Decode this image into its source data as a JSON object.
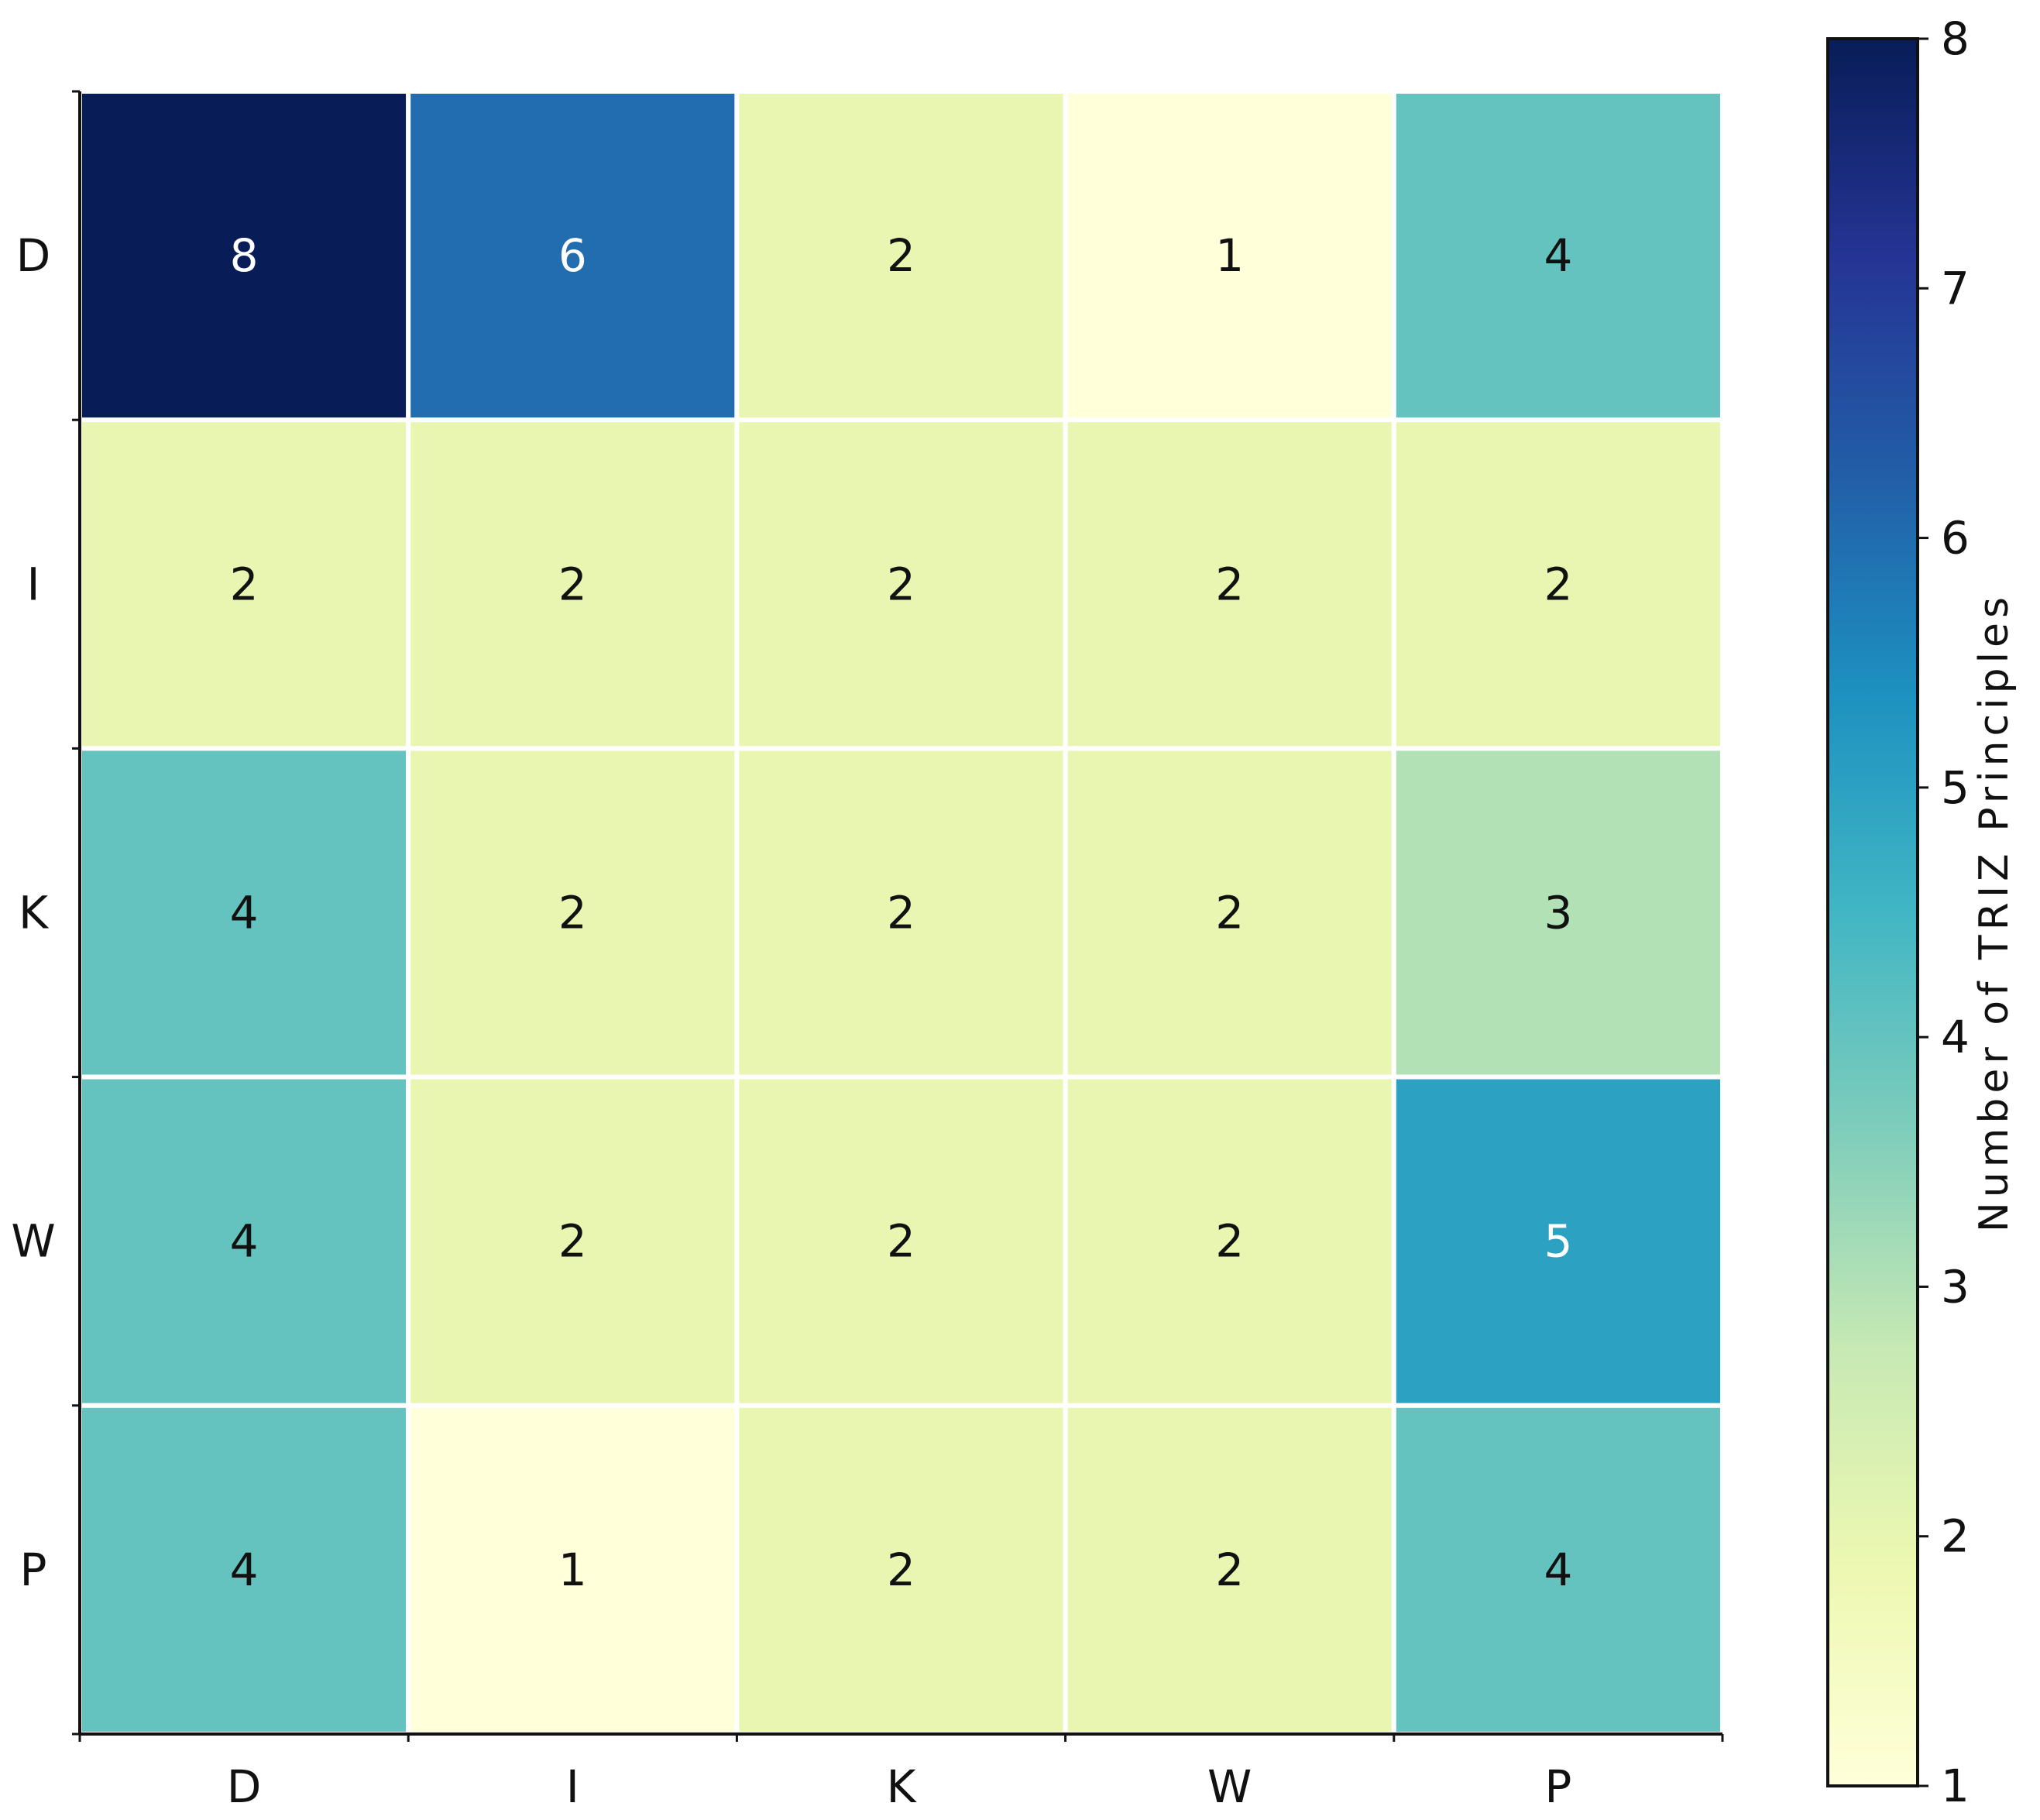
{
  "chart_data": {
    "type": "heatmap",
    "title": "",
    "xlabel": "",
    "ylabel": "",
    "x_categories": [
      "D",
      "I",
      "K",
      "W",
      "P"
    ],
    "y_categories": [
      "D",
      "I",
      "K",
      "W",
      "P"
    ],
    "values": [
      [
        8,
        6,
        2,
        1,
        4
      ],
      [
        2,
        2,
        2,
        2,
        2
      ],
      [
        4,
        2,
        2,
        2,
        3
      ],
      [
        4,
        2,
        2,
        2,
        5
      ],
      [
        4,
        1,
        2,
        2,
        4
      ]
    ],
    "colorbar": {
      "label": "Number of TRIZ Principles",
      "range": [
        1,
        8
      ],
      "ticks": [
        "1",
        "2",
        "3",
        "4",
        "5",
        "6",
        "7",
        "8"
      ],
      "colormap": "YlGnBu"
    },
    "grid": false
  },
  "colors": {
    "cell_border": "#ffffff",
    "axis": "#111111",
    "text_dark": "#111111",
    "text_light": "#ffffff"
  }
}
